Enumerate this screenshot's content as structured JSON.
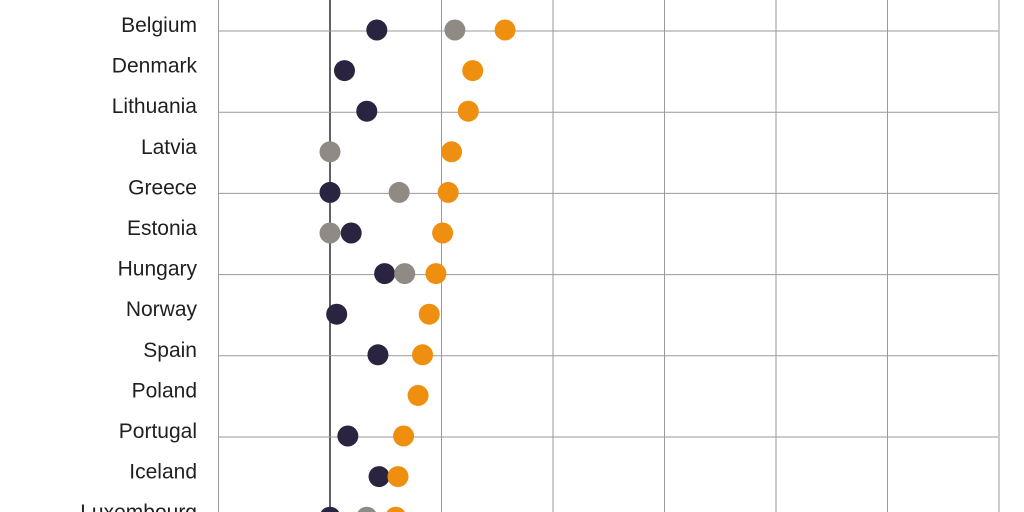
{
  "chart_data": {
    "type": "scatter",
    "subtype": "dot-plot",
    "orientation": "horizontal",
    "title": "",
    "xlabel": "",
    "ylabel": "",
    "grid": true,
    "categories": [
      "Belgium",
      "Denmark",
      "Lithuania",
      "Latvia",
      "Greece",
      "Estonia",
      "Hungary",
      "Norway",
      "Spain",
      "Poland",
      "Portugal",
      "Iceland",
      "Luxembourg"
    ],
    "xlim": [
      -1,
      6
    ],
    "series": [
      {
        "color": "#2a2440",
        "values": [
          0.42,
          0.13,
          0.33,
          null,
          0.0,
          0.19,
          0.49,
          0.06,
          0.43,
          null,
          0.16,
          0.44,
          0.0
        ]
      },
      {
        "color": "#8f8a84",
        "values": [
          1.12,
          null,
          null,
          0.0,
          0.62,
          0.0,
          0.67,
          null,
          null,
          null,
          null,
          null,
          0.33
        ]
      },
      {
        "color": "#ee8f0f",
        "values": [
          1.57,
          1.28,
          1.24,
          1.09,
          1.06,
          1.01,
          0.95,
          0.89,
          0.83,
          0.79,
          0.66,
          0.61,
          0.59
        ]
      }
    ]
  }
}
